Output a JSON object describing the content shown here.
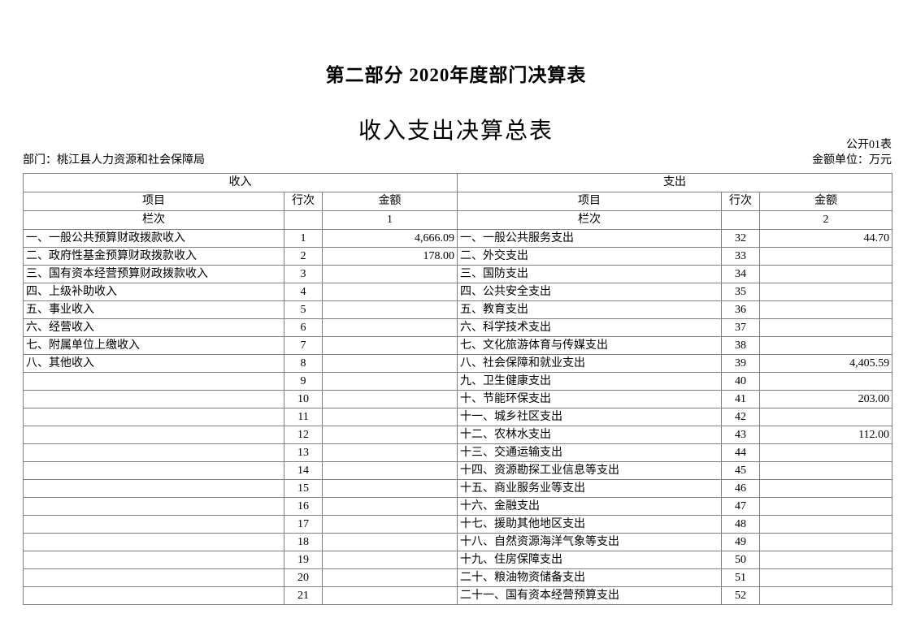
{
  "page": {
    "part_title": "第二部分  2020年度部门决算表",
    "table_title": "收入支出决算总表",
    "table_code": "公开01表",
    "department_label": "部门：桃江县人力资源和社会保障局",
    "unit_label": "金额单位：万元"
  },
  "colors": {
    "background": "#ffffff",
    "text": "#000000",
    "table_border": "#7f7f7f"
  },
  "table": {
    "income_header": "收入",
    "expense_header": "支出",
    "col_item": "项目",
    "col_row_no": "行次",
    "col_amount": "金额",
    "col_index_label": "栏次",
    "income_col_index": "1",
    "expense_col_index": "2",
    "rows": [
      {
        "income_item": "一、一般公共预算财政拨款收入",
        "income_row": "1",
        "income_amount": "4,666.09",
        "expense_item": "一、一般公共服务支出",
        "expense_row": "32",
        "expense_amount": "44.70"
      },
      {
        "income_item": "二、政府性基金预算财政拨款收入",
        "income_row": "2",
        "income_amount": "178.00",
        "expense_item": "二、外交支出",
        "expense_row": "33",
        "expense_amount": ""
      },
      {
        "income_item": "三、国有资本经营预算财政拨款收入",
        "income_row": "3",
        "income_amount": "",
        "expense_item": "三、国防支出",
        "expense_row": "34",
        "expense_amount": ""
      },
      {
        "income_item": "四、上级补助收入",
        "income_row": "4",
        "income_amount": "",
        "expense_item": "四、公共安全支出",
        "expense_row": "35",
        "expense_amount": ""
      },
      {
        "income_item": "五、事业收入",
        "income_row": "5",
        "income_amount": "",
        "expense_item": "五、教育支出",
        "expense_row": "36",
        "expense_amount": ""
      },
      {
        "income_item": "六、经营收入",
        "income_row": "6",
        "income_amount": "",
        "expense_item": "六、科学技术支出",
        "expense_row": "37",
        "expense_amount": ""
      },
      {
        "income_item": "七、附属单位上缴收入",
        "income_row": "7",
        "income_amount": "",
        "expense_item": "七、文化旅游体育与传媒支出",
        "expense_row": "38",
        "expense_amount": ""
      },
      {
        "income_item": "八、其他收入",
        "income_row": "8",
        "income_amount": "",
        "expense_item": "八、社会保障和就业支出",
        "expense_row": "39",
        "expense_amount": "4,405.59"
      },
      {
        "income_item": "",
        "income_row": "9",
        "income_amount": "",
        "expense_item": "九、卫生健康支出",
        "expense_row": "40",
        "expense_amount": ""
      },
      {
        "income_item": "",
        "income_row": "10",
        "income_amount": "",
        "expense_item": "十、节能环保支出",
        "expense_row": "41",
        "expense_amount": "203.00"
      },
      {
        "income_item": "",
        "income_row": "11",
        "income_amount": "",
        "expense_item": "十一、城乡社区支出",
        "expense_row": "42",
        "expense_amount": ""
      },
      {
        "income_item": "",
        "income_row": "12",
        "income_amount": "",
        "expense_item": "十二、农林水支出",
        "expense_row": "43",
        "expense_amount": "112.00"
      },
      {
        "income_item": "",
        "income_row": "13",
        "income_amount": "",
        "expense_item": "十三、交通运输支出",
        "expense_row": "44",
        "expense_amount": ""
      },
      {
        "income_item": "",
        "income_row": "14",
        "income_amount": "",
        "expense_item": "十四、资源勘探工业信息等支出",
        "expense_row": "45",
        "expense_amount": ""
      },
      {
        "income_item": "",
        "income_row": "15",
        "income_amount": "",
        "expense_item": "十五、商业服务业等支出",
        "expense_row": "46",
        "expense_amount": ""
      },
      {
        "income_item": "",
        "income_row": "16",
        "income_amount": "",
        "expense_item": "十六、金融支出",
        "expense_row": "47",
        "expense_amount": ""
      },
      {
        "income_item": "",
        "income_row": "17",
        "income_amount": "",
        "expense_item": "十七、援助其他地区支出",
        "expense_row": "48",
        "expense_amount": ""
      },
      {
        "income_item": "",
        "income_row": "18",
        "income_amount": "",
        "expense_item": "十八、自然资源海洋气象等支出",
        "expense_row": "49",
        "expense_amount": ""
      },
      {
        "income_item": "",
        "income_row": "19",
        "income_amount": "",
        "expense_item": "十九、住房保障支出",
        "expense_row": "50",
        "expense_amount": ""
      },
      {
        "income_item": "",
        "income_row": "20",
        "income_amount": "",
        "expense_item": "二十、粮油物资储备支出",
        "expense_row": "51",
        "expense_amount": ""
      },
      {
        "income_item": "",
        "income_row": "21",
        "income_amount": "",
        "expense_item": "二十一、国有资本经营预算支出",
        "expense_row": "52",
        "expense_amount": ""
      }
    ]
  }
}
